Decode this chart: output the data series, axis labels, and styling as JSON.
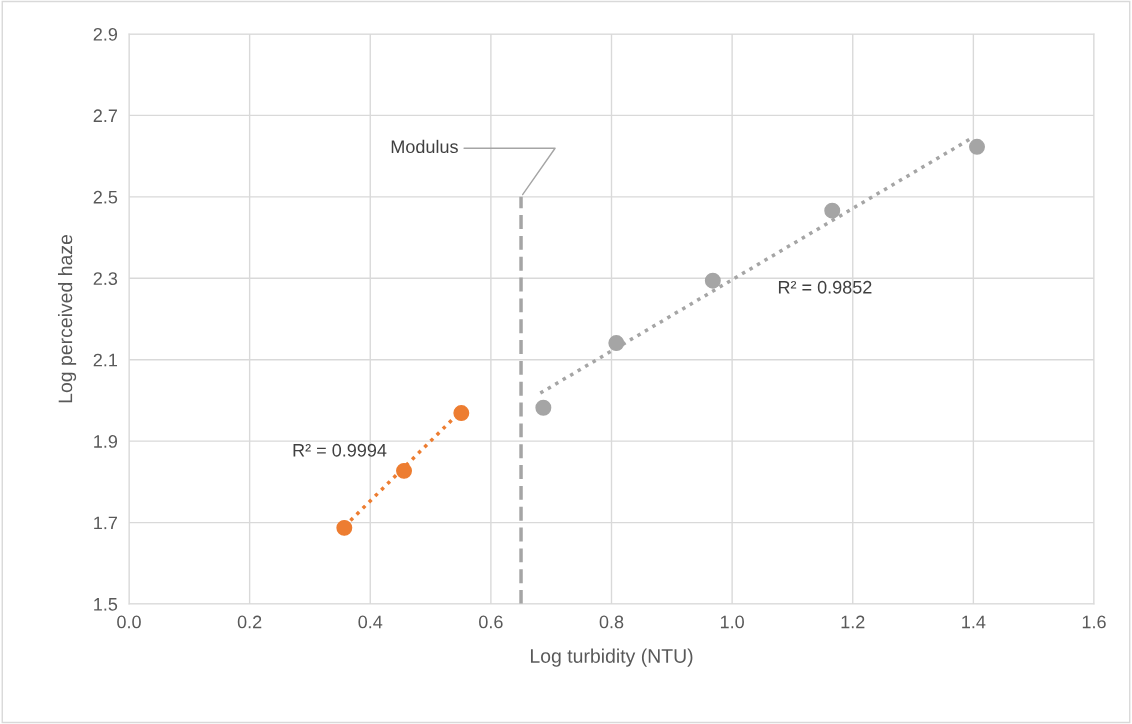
{
  "chart_data": {
    "type": "scatter",
    "xlabel": "Log turbidity (NTU)",
    "ylabel": "Log perceived haze",
    "xlim": [
      0.0,
      1.6
    ],
    "xticks": [
      {
        "value": 0,
        "label": "0.0"
      },
      0.2,
      0.4,
      0.6,
      0.8,
      {
        "value": 1,
        "label": "1.0"
      },
      1.2,
      1.4,
      1.6
    ],
    "ylim": [
      1.5,
      2.9
    ],
    "yticks": [
      1.5,
      1.7,
      1.9,
      2.1,
      2.3,
      2.5,
      2.7,
      2.9
    ],
    "grid": true,
    "marker": "circle",
    "series": [
      {
        "type": "line",
        "color": "#ed7d31",
        "x": [
          0.357,
          0.551
        ],
        "values": [
          1.69,
          1.975
        ],
        "line_style": "dotted",
        "marker": "none"
      },
      {
        "type": "line",
        "color": "#a5a5a5",
        "x": [
          0.682,
          1.398
        ],
        "values": [
          2.018,
          2.645
        ],
        "line_style": "dotted",
        "marker": "none"
      },
      {
        "type": "line",
        "color": "#a5a5a5",
        "x": [
          0.65,
          0.65
        ],
        "values": [
          1.5,
          2.5
        ],
        "line_style": "dashed",
        "marker": "none"
      },
      {
        "color": "#ed7d31",
        "x": [
          0.357,
          0.456,
          0.551
        ],
        "values": [
          1.687,
          1.827,
          1.969
        ]
      },
      {
        "color": "#a5a5a5",
        "x": [
          0.687,
          0.808,
          0.968,
          1.166,
          1.406
        ],
        "values": [
          1.982,
          2.141,
          2.294,
          2.466,
          2.623
        ]
      }
    ],
    "annotations": [
      "R² = 0.9994",
      "R² = 0.9852",
      {
        "text": "Modulus",
        "x": 0.65,
        "y": 2.5
      }
    ]
  }
}
